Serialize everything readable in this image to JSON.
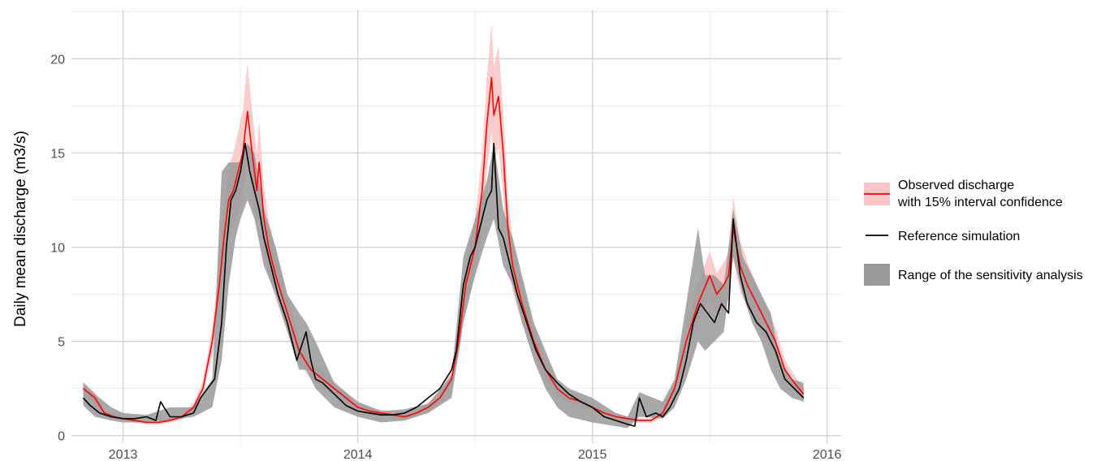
{
  "chart_data": {
    "type": "line",
    "title": "",
    "xlabel": "",
    "ylabel": "Daily mean discharge (m3/s)",
    "xlim": [
      2012.78,
      2016.06
    ],
    "ylim": [
      -0.4,
      22.6
    ],
    "x_ticks": [
      {
        "value": 2013,
        "label": "2013"
      },
      {
        "value": 2014,
        "label": "2014"
      },
      {
        "value": 2015,
        "label": "2015"
      },
      {
        "value": 2016,
        "label": "2016"
      }
    ],
    "y_ticks": [
      {
        "value": 0,
        "label": "0"
      },
      {
        "value": 5,
        "label": "5"
      },
      {
        "value": 10,
        "label": "10"
      },
      {
        "value": 15,
        "label": "15"
      },
      {
        "value": 20,
        "label": "20"
      }
    ],
    "grid": true,
    "legend_position": "right",
    "colors": {
      "observed": "#ff0000",
      "observed_band": "#f9c6c6",
      "reference": "#000000",
      "sensitivity_band": "#999999",
      "grid_major": "#d3d3d3",
      "grid_minor": "#ebebeb"
    },
    "legend": [
      {
        "key": "observed",
        "lines": [
          "Observed discharge",
          "with 15% interval confidence"
        ]
      },
      {
        "key": "reference",
        "lines": [
          "Reference simulation"
        ]
      },
      {
        "key": "sensitivity",
        "lines": [
          "Range of the sensitivity analysis"
        ]
      }
    ],
    "series": [
      {
        "name": "Observed discharge with 15% interval confidence",
        "x": [
          2012.83,
          2012.88,
          2012.92,
          2012.96,
          2013.0,
          2013.05,
          2013.1,
          2013.15,
          2013.2,
          2013.25,
          2013.3,
          2013.34,
          2013.38,
          2013.41,
          2013.43,
          2013.45,
          2013.47,
          2013.49,
          2013.51,
          2013.53,
          2013.55,
          2013.57,
          2013.58,
          2013.6,
          2013.62,
          2013.65,
          2013.7,
          2013.75,
          2013.8,
          2013.85,
          2013.9,
          2013.95,
          2014.0,
          2014.05,
          2014.1,
          2014.15,
          2014.2,
          2014.25,
          2014.3,
          2014.35,
          2014.4,
          2014.43,
          2014.46,
          2014.5,
          2014.53,
          2014.55,
          2014.57,
          2014.58,
          2014.6,
          2014.62,
          2014.64,
          2014.66,
          2014.7,
          2014.75,
          2014.8,
          2014.85,
          2014.9,
          2014.95,
          2015.0,
          2015.05,
          2015.1,
          2015.15,
          2015.2,
          2015.25,
          2015.3,
          2015.35,
          2015.4,
          2015.45,
          2015.5,
          2015.53,
          2015.56,
          2015.58,
          2015.6,
          2015.63,
          2015.66,
          2015.7,
          2015.74,
          2015.78,
          2015.82,
          2015.86,
          2015.9
        ],
        "y": [
          2.5,
          2.0,
          1.2,
          1.0,
          0.9,
          0.8,
          0.7,
          0.7,
          0.8,
          1.0,
          1.5,
          2.5,
          5.0,
          8.0,
          10.5,
          12.5,
          13.0,
          14.0,
          15.0,
          17.2,
          15.0,
          13.0,
          14.5,
          11.5,
          10.0,
          8.5,
          6.5,
          4.5,
          3.5,
          3.0,
          2.5,
          2.0,
          1.5,
          1.3,
          1.2,
          1.1,
          1.0,
          1.2,
          1.5,
          2.0,
          3.0,
          5.0,
          8.0,
          10.0,
          13.0,
          16.5,
          19.0,
          17.0,
          18.0,
          15.0,
          11.0,
          9.0,
          7.0,
          5.0,
          3.5,
          2.5,
          2.0,
          1.8,
          1.5,
          1.2,
          1.0,
          0.9,
          0.8,
          0.8,
          1.2,
          2.5,
          5.0,
          7.0,
          8.5,
          7.5,
          8.0,
          8.5,
          11.0,
          9.0,
          8.0,
          7.0,
          6.0,
          5.0,
          3.5,
          2.8,
          2.2
        ]
      },
      {
        "name": "Reference simulation",
        "x": [
          2012.83,
          2012.86,
          2012.9,
          2012.95,
          2013.0,
          2013.05,
          2013.1,
          2013.14,
          2013.16,
          2013.2,
          2013.25,
          2013.3,
          2013.33,
          2013.36,
          2013.39,
          2013.42,
          2013.44,
          2013.46,
          2013.48,
          2013.5,
          2013.52,
          2013.54,
          2013.56,
          2013.58,
          2013.6,
          2013.63,
          2013.66,
          2013.7,
          2013.74,
          2013.78,
          2013.8,
          2013.82,
          2013.85,
          2013.9,
          2013.95,
          2014.0,
          2014.05,
          2014.1,
          2014.15,
          2014.2,
          2014.25,
          2014.3,
          2014.35,
          2014.4,
          2014.42,
          2014.45,
          2014.48,
          2014.5,
          2014.53,
          2014.55,
          2014.57,
          2014.58,
          2014.6,
          2014.62,
          2014.65,
          2014.68,
          2014.72,
          2014.76,
          2014.8,
          2014.85,
          2014.9,
          2014.95,
          2015.0,
          2015.05,
          2015.1,
          2015.15,
          2015.18,
          2015.2,
          2015.23,
          2015.27,
          2015.3,
          2015.33,
          2015.37,
          2015.4,
          2015.43,
          2015.46,
          2015.49,
          2015.52,
          2015.55,
          2015.58,
          2015.6,
          2015.63,
          2015.66,
          2015.7,
          2015.74,
          2015.78,
          2015.82,
          2015.86,
          2015.9
        ],
        "y": [
          2.0,
          1.6,
          1.2,
          1.0,
          0.9,
          0.9,
          1.0,
          0.8,
          1.8,
          1.0,
          1.0,
          1.2,
          2.0,
          2.5,
          3.0,
          6.0,
          10.0,
          12.5,
          13.0,
          14.0,
          15.5,
          14.0,
          13.0,
          12.0,
          10.5,
          9.0,
          7.5,
          6.0,
          4.0,
          5.5,
          4.0,
          3.0,
          2.8,
          2.2,
          1.6,
          1.3,
          1.2,
          1.1,
          1.1,
          1.2,
          1.5,
          2.0,
          2.5,
          3.5,
          4.5,
          8.0,
          9.5,
          10.0,
          11.5,
          12.5,
          13.0,
          15.5,
          11.0,
          10.5,
          9.0,
          7.5,
          6.0,
          4.5,
          3.5,
          2.8,
          2.2,
          1.8,
          1.5,
          1.0,
          0.8,
          0.6,
          0.5,
          2.0,
          1.0,
          1.2,
          1.0,
          1.5,
          2.5,
          4.0,
          6.0,
          7.0,
          6.5,
          6.0,
          7.0,
          6.5,
          11.5,
          8.5,
          7.0,
          6.0,
          5.5,
          4.5,
          3.0,
          2.5,
          2.0
        ]
      }
    ],
    "bands": [
      {
        "name": "Range of the sensitivity analysis",
        "x": [
          2012.83,
          2012.88,
          2012.95,
          2013.0,
          2013.1,
          2013.2,
          2013.3,
          2013.38,
          2013.42,
          2013.45,
          2013.48,
          2013.5,
          2013.53,
          2013.56,
          2013.6,
          2013.65,
          2013.7,
          2013.75,
          2013.78,
          2013.82,
          2013.9,
          2014.0,
          2014.1,
          2014.2,
          2014.3,
          2014.4,
          2014.45,
          2014.5,
          2014.55,
          2014.58,
          2014.62,
          2014.66,
          2014.7,
          2014.75,
          2014.8,
          2014.85,
          2014.9,
          2015.0,
          2015.1,
          2015.15,
          2015.2,
          2015.3,
          2015.35,
          2015.4,
          2015.45,
          2015.48,
          2015.52,
          2015.56,
          2015.6,
          2015.64,
          2015.68,
          2015.72,
          2015.76,
          2015.8,
          2015.85,
          2015.9
        ],
        "low": [
          1.6,
          1.0,
          0.8,
          0.7,
          0.7,
          0.8,
          1.0,
          1.5,
          4.0,
          8.0,
          10.5,
          11.5,
          12.5,
          11.5,
          9.0,
          7.5,
          5.5,
          3.5,
          3.5,
          2.5,
          1.5,
          1.0,
          0.7,
          0.8,
          1.2,
          2.0,
          6.0,
          8.5,
          10.5,
          11.5,
          9.0,
          8.0,
          6.0,
          4.0,
          2.5,
          1.5,
          1.0,
          0.7,
          0.5,
          0.4,
          1.0,
          0.9,
          1.5,
          3.0,
          5.0,
          4.5,
          5.0,
          5.5,
          9.5,
          7.5,
          6.0,
          5.0,
          3.5,
          2.5,
          2.0,
          1.8
        ],
        "high": [
          2.8,
          2.2,
          1.5,
          1.2,
          1.1,
          1.5,
          1.5,
          3.0,
          14.0,
          14.5,
          14.5,
          14.5,
          15.5,
          15.0,
          12.0,
          10.0,
          7.5,
          6.5,
          6.0,
          5.0,
          2.8,
          1.8,
          1.3,
          1.4,
          1.7,
          3.2,
          9.5,
          11.5,
          13.5,
          15.5,
          12.0,
          10.5,
          8.5,
          6.0,
          4.5,
          3.0,
          2.5,
          2.0,
          1.2,
          1.0,
          2.3,
          1.8,
          3.0,
          7.0,
          11.0,
          8.5,
          8.5,
          8.0,
          12.0,
          9.5,
          8.5,
          7.5,
          6.5,
          4.0,
          3.0,
          2.8
        ]
      }
    ]
  }
}
